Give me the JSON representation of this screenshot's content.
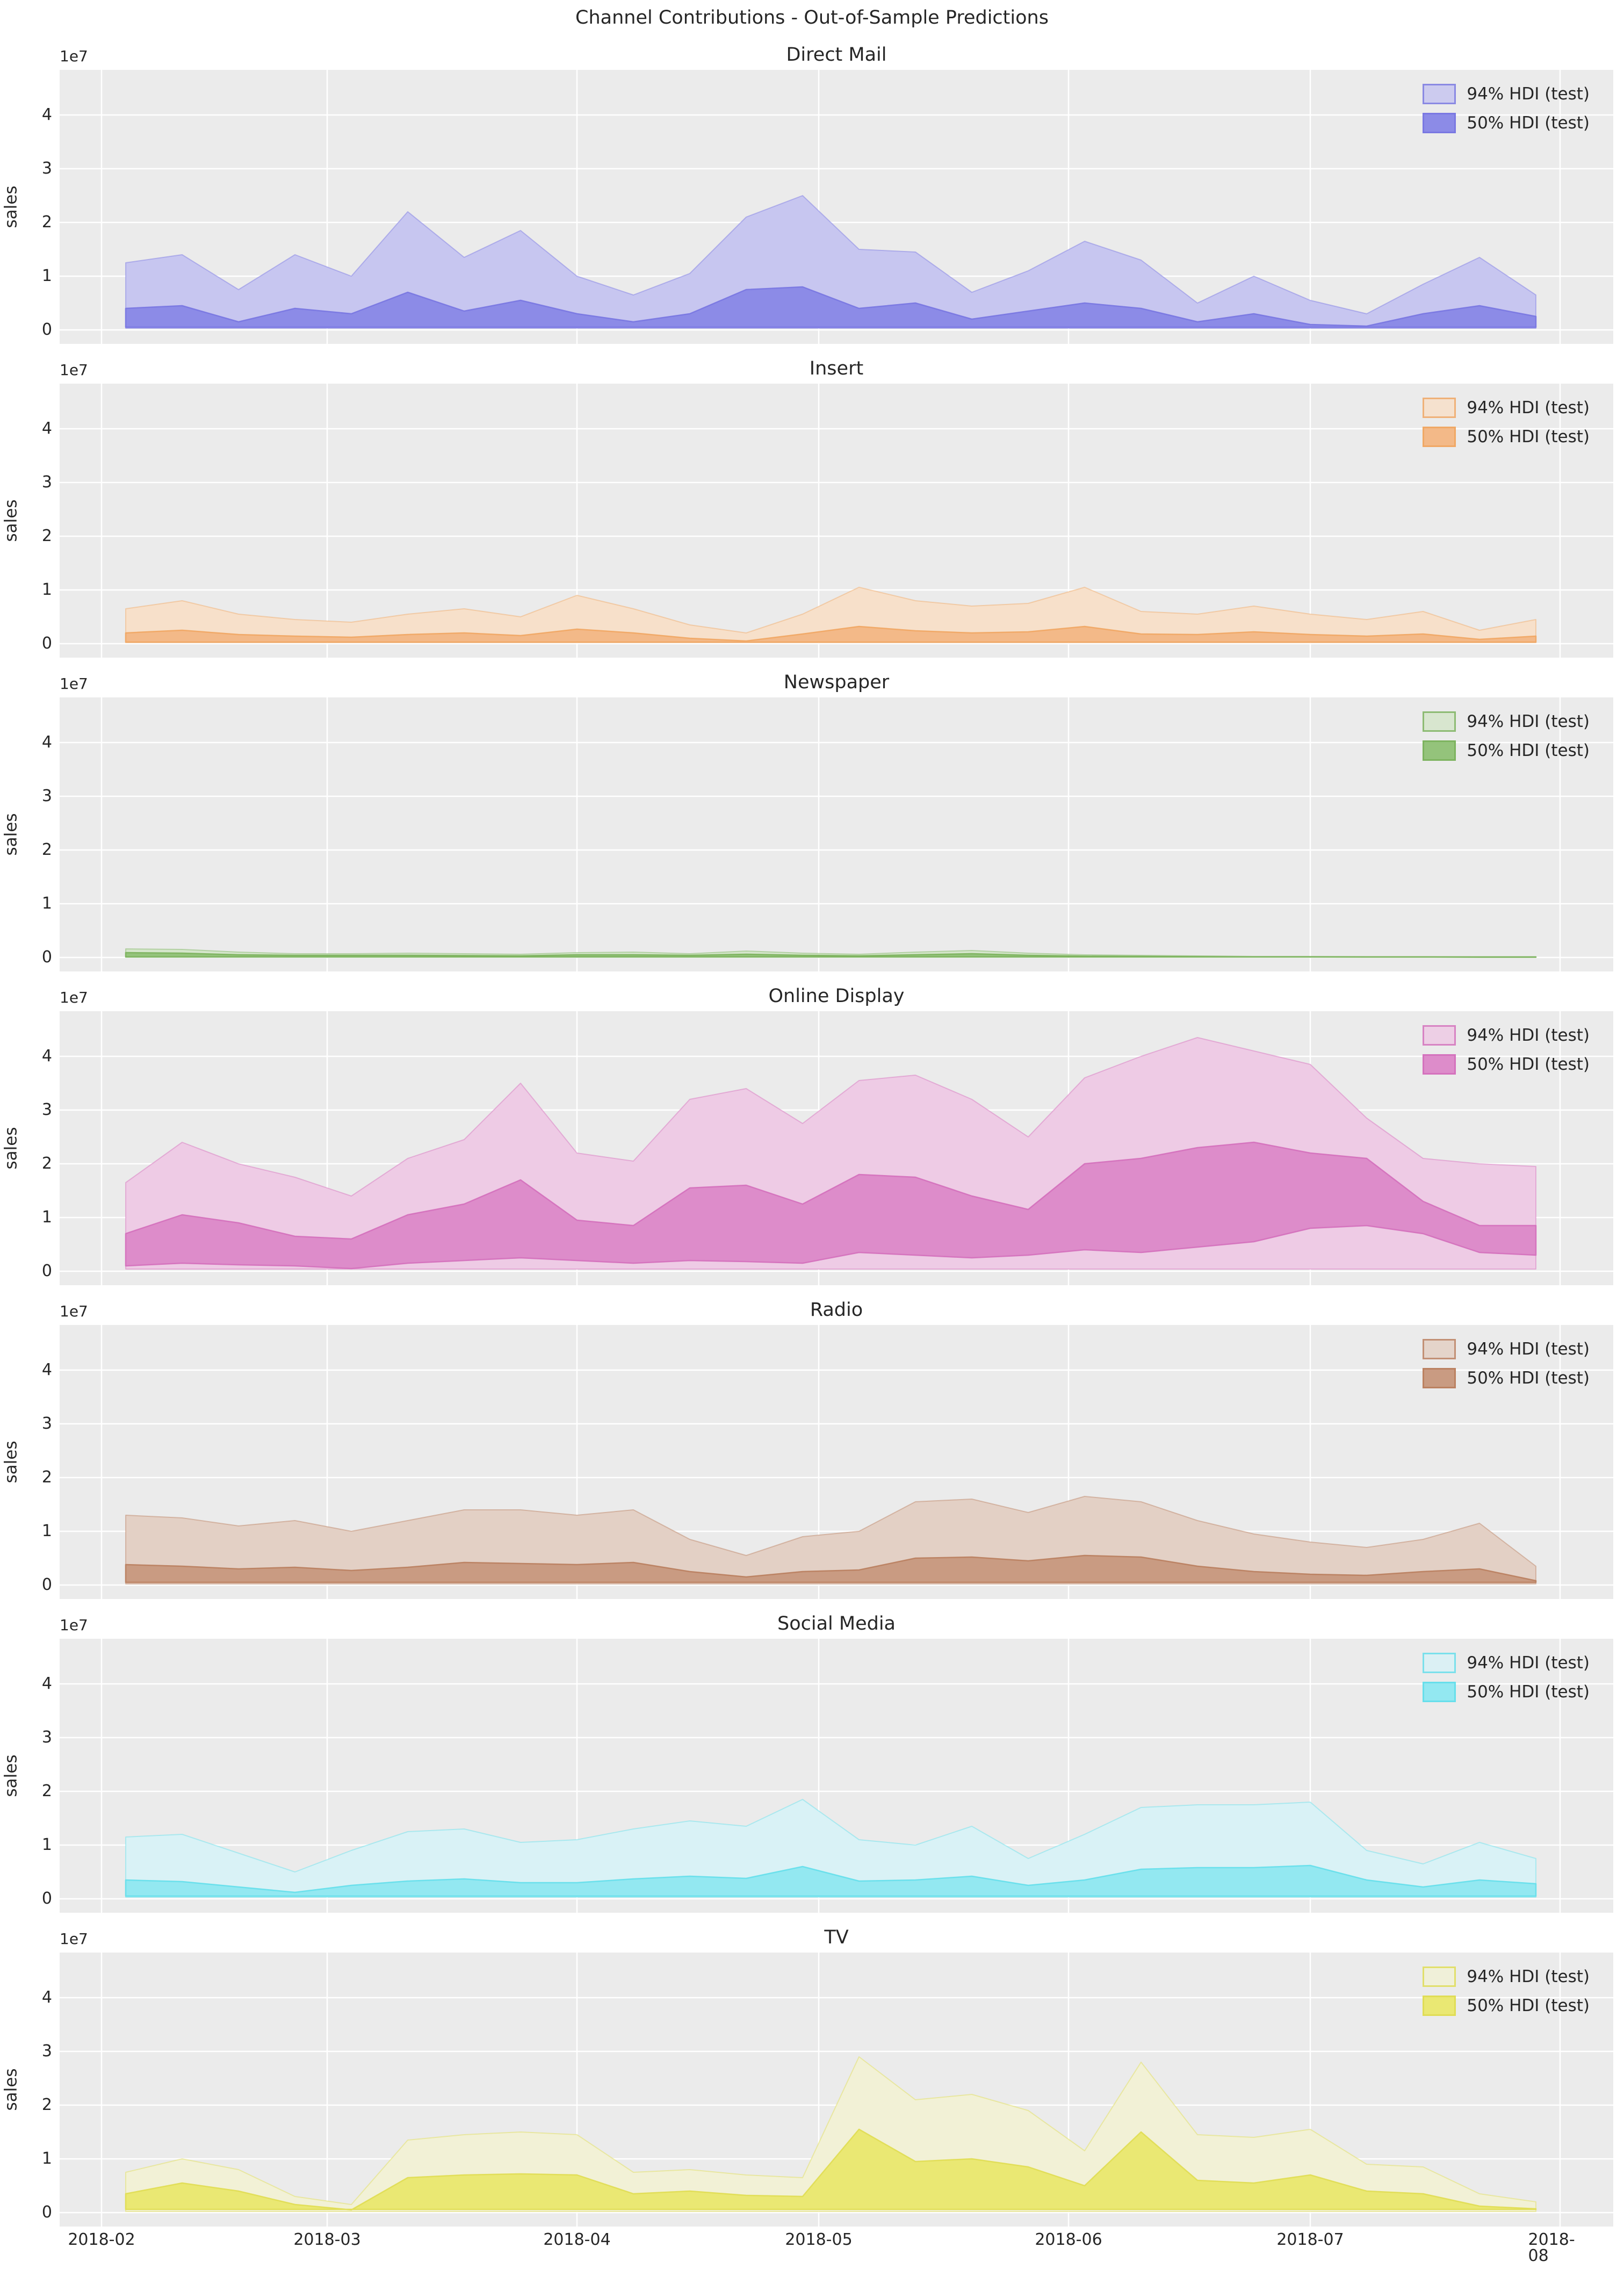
{
  "suptitle": "Channel Contributions - Out-of-Sample Predictions",
  "ylabel": "sales",
  "y_offset_label": "1e7",
  "y_value_unit": "1e7",
  "legend": {
    "hdi94": "94% HDI (test)",
    "hdi50": "50% HDI (test)"
  },
  "style": {
    "plot_bg": "#ebebeb",
    "grid_color": "#ffffff",
    "text_color": "#262626"
  },
  "axis": {
    "yticks": [
      "0",
      "1",
      "2",
      "3",
      "4"
    ],
    "ylim_e7": [
      -0.26,
      4.84
    ],
    "xticks": [
      "2018-02",
      "2018-03",
      "2018-04",
      "2018-05",
      "2018-06",
      "2018-07",
      "2018-08"
    ],
    "x_month_days": [
      0,
      28,
      59,
      89,
      120,
      150,
      181
    ],
    "xlim_days": [
      -5.2,
      187.6
    ],
    "x_point_days": [
      3,
      10,
      17,
      24,
      31,
      38,
      45,
      52,
      59,
      66,
      73,
      80,
      87,
      94,
      101,
      108,
      115,
      122,
      129,
      136,
      143,
      150,
      157,
      164,
      171,
      178
    ],
    "x_point_dates": [
      "2018-02-04",
      "2018-02-11",
      "2018-02-18",
      "2018-02-25",
      "2018-03-04",
      "2018-03-11",
      "2018-03-18",
      "2018-03-25",
      "2018-04-01",
      "2018-04-08",
      "2018-04-15",
      "2018-04-22",
      "2018-04-29",
      "2018-05-06",
      "2018-05-13",
      "2018-05-20",
      "2018-05-27",
      "2018-06-03",
      "2018-06-10",
      "2018-06-17",
      "2018-06-24",
      "2018-07-01",
      "2018-07-08",
      "2018-07-15",
      "2018-07-22",
      "2018-07-29"
    ],
    "grid": true,
    "legend_position": "upper right"
  },
  "chart_data": [
    {
      "type": "area",
      "title": "Direct Mail",
      "colors": {
        "hdi94_fill": "#c7c6f0",
        "hdi50_fill": "#8c8be7",
        "line": "#7a78e2"
      },
      "hdi94_upper": [
        1.25,
        1.4,
        0.75,
        1.4,
        1.0,
        2.2,
        1.35,
        1.85,
        1.0,
        0.65,
        1.05,
        2.1,
        2.5,
        1.5,
        1.45,
        0.7,
        1.1,
        1.65,
        1.3,
        0.5,
        1.0,
        0.55,
        0.3,
        0.85,
        1.35,
        0.65
      ],
      "hdi94_lower": 0.03,
      "hdi50_upper": [
        0.4,
        0.45,
        0.15,
        0.4,
        0.3,
        0.7,
        0.35,
        0.55,
        0.3,
        0.15,
        0.3,
        0.75,
        0.8,
        0.4,
        0.5,
        0.2,
        0.35,
        0.5,
        0.4,
        0.15,
        0.3,
        0.1,
        0.07,
        0.3,
        0.45,
        0.25
      ],
      "hdi50_lower": 0.05
    },
    {
      "type": "area",
      "title": "Insert",
      "colors": {
        "hdi94_fill": "#f7e0ca",
        "hdi50_fill": "#f3b988",
        "line": "#f0a865"
      },
      "hdi94_upper": [
        0.65,
        0.8,
        0.55,
        0.45,
        0.4,
        0.55,
        0.65,
        0.5,
        0.9,
        0.65,
        0.35,
        0.2,
        0.55,
        1.05,
        0.8,
        0.7,
        0.75,
        1.05,
        0.6,
        0.55,
        0.7,
        0.55,
        0.45,
        0.6,
        0.25,
        0.45
      ],
      "hdi94_lower": 0.02,
      "hdi50_upper": [
        0.2,
        0.25,
        0.17,
        0.14,
        0.12,
        0.17,
        0.2,
        0.15,
        0.27,
        0.2,
        0.1,
        0.05,
        0.18,
        0.32,
        0.24,
        0.2,
        0.22,
        0.32,
        0.18,
        0.17,
        0.22,
        0.17,
        0.14,
        0.18,
        0.08,
        0.14
      ],
      "hdi50_lower": 0.03
    },
    {
      "type": "area",
      "title": "Newspaper",
      "colors": {
        "hdi94_fill": "#d5e6cb",
        "hdi50_fill": "#94c37b",
        "line": "#7db35f"
      },
      "hdi94_upper": [
        0.16,
        0.15,
        0.1,
        0.07,
        0.07,
        0.08,
        0.07,
        0.06,
        0.09,
        0.1,
        0.07,
        0.12,
        0.08,
        0.06,
        0.1,
        0.13,
        0.08,
        0.05,
        0.04,
        0.03,
        0.02,
        0.02,
        0.015,
        0.015,
        0.01,
        0.01
      ],
      "hdi94_lower": 0.005,
      "hdi50_upper": [
        0.09,
        0.08,
        0.05,
        0.04,
        0.04,
        0.04,
        0.035,
        0.03,
        0.05,
        0.05,
        0.04,
        0.06,
        0.04,
        0.03,
        0.05,
        0.07,
        0.04,
        0.025,
        0.02,
        0.015,
        0.01,
        0.01,
        0.008,
        0.008,
        0.005,
        0.005
      ],
      "hdi50_lower": 0.01
    },
    {
      "type": "area",
      "title": "Online Display",
      "colors": {
        "hdi94_fill": "#eecbe5",
        "hdi50_fill": "#dd8cca",
        "line": "#d472bd"
      },
      "hdi94_upper": [
        1.65,
        2.4,
        2.0,
        1.75,
        1.4,
        2.1,
        2.45,
        3.5,
        2.2,
        2.05,
        3.2,
        3.4,
        2.75,
        3.55,
        3.65,
        3.2,
        2.5,
        3.6,
        4.0,
        4.35,
        4.1,
        3.85,
        2.85,
        2.1,
        2.0,
        1.95
      ],
      "hdi94_lower": 0.04,
      "hdi50_upper": [
        0.7,
        1.05,
        0.9,
        0.65,
        0.6,
        1.05,
        1.25,
        1.7,
        0.95,
        0.85,
        1.55,
        1.6,
        1.25,
        1.8,
        1.75,
        1.4,
        1.15,
        2.0,
        2.1,
        2.3,
        2.4,
        2.2,
        2.1,
        1.3,
        0.85,
        0.85
      ],
      "hdi50_lower": [
        0.1,
        0.15,
        0.12,
        0.1,
        0.05,
        0.15,
        0.2,
        0.25,
        0.2,
        0.15,
        0.2,
        0.18,
        0.15,
        0.35,
        0.3,
        0.25,
        0.3,
        0.4,
        0.35,
        0.45,
        0.55,
        0.8,
        0.85,
        0.7,
        0.35,
        0.3
      ]
    },
    {
      "type": "area",
      "title": "Radio",
      "colors": {
        "hdi94_fill": "#e3d0c5",
        "hdi50_fill": "#c99b82",
        "line": "#bb8161"
      },
      "hdi94_upper": [
        1.3,
        1.25,
        1.1,
        1.2,
        1.0,
        1.2,
        1.4,
        1.4,
        1.3,
        1.4,
        0.85,
        0.55,
        0.9,
        1.0,
        1.55,
        1.6,
        1.35,
        1.65,
        1.55,
        1.2,
        0.95,
        0.8,
        0.7,
        0.85,
        1.15,
        0.35
      ],
      "hdi94_lower": 0.02,
      "hdi50_upper": [
        0.38,
        0.35,
        0.3,
        0.33,
        0.27,
        0.33,
        0.42,
        0.4,
        0.38,
        0.42,
        0.25,
        0.15,
        0.25,
        0.28,
        0.5,
        0.52,
        0.45,
        0.55,
        0.52,
        0.35,
        0.25,
        0.2,
        0.18,
        0.25,
        0.3,
        0.08
      ],
      "hdi50_lower": 0.05
    },
    {
      "type": "area",
      "title": "Social Media",
      "colors": {
        "hdi94_fill": "#d9f2f6",
        "hdi50_fill": "#93e8f1",
        "line": "#67dfeb"
      },
      "hdi94_upper": [
        1.15,
        1.2,
        0.85,
        0.5,
        0.9,
        1.25,
        1.3,
        1.05,
        1.1,
        1.3,
        1.45,
        1.35,
        1.85,
        1.1,
        1.0,
        1.35,
        0.75,
        1.2,
        1.7,
        1.75,
        1.75,
        1.8,
        0.9,
        0.65,
        1.05,
        0.75
      ],
      "hdi94_lower": 0.03,
      "hdi50_upper": [
        0.35,
        0.32,
        0.22,
        0.12,
        0.25,
        0.33,
        0.37,
        0.3,
        0.3,
        0.37,
        0.42,
        0.38,
        0.6,
        0.33,
        0.35,
        0.42,
        0.25,
        0.35,
        0.55,
        0.58,
        0.58,
        0.62,
        0.35,
        0.22,
        0.35,
        0.28
      ],
      "hdi50_lower": 0.05
    },
    {
      "type": "area",
      "title": "TV",
      "colors": {
        "hdi94_fill": "#f2f1d6",
        "hdi50_fill": "#eae873",
        "line": "#e0dd55"
      },
      "hdi94_upper": [
        0.75,
        1.0,
        0.8,
        0.3,
        0.15,
        1.35,
        1.45,
        1.5,
        1.45,
        0.75,
        0.8,
        0.7,
        0.65,
        2.9,
        2.1,
        2.2,
        1.9,
        1.15,
        2.8,
        1.45,
        1.4,
        1.55,
        0.9,
        0.85,
        0.35,
        0.2
      ],
      "hdi94_lower": 0.02,
      "hdi50_upper": [
        0.35,
        0.55,
        0.4,
        0.15,
        0.05,
        0.65,
        0.7,
        0.72,
        0.7,
        0.35,
        0.4,
        0.32,
        0.3,
        1.55,
        0.95,
        1.0,
        0.85,
        0.5,
        1.5,
        0.6,
        0.55,
        0.7,
        0.4,
        0.35,
        0.12,
        0.07
      ],
      "hdi50_lower": 0.06
    }
  ]
}
